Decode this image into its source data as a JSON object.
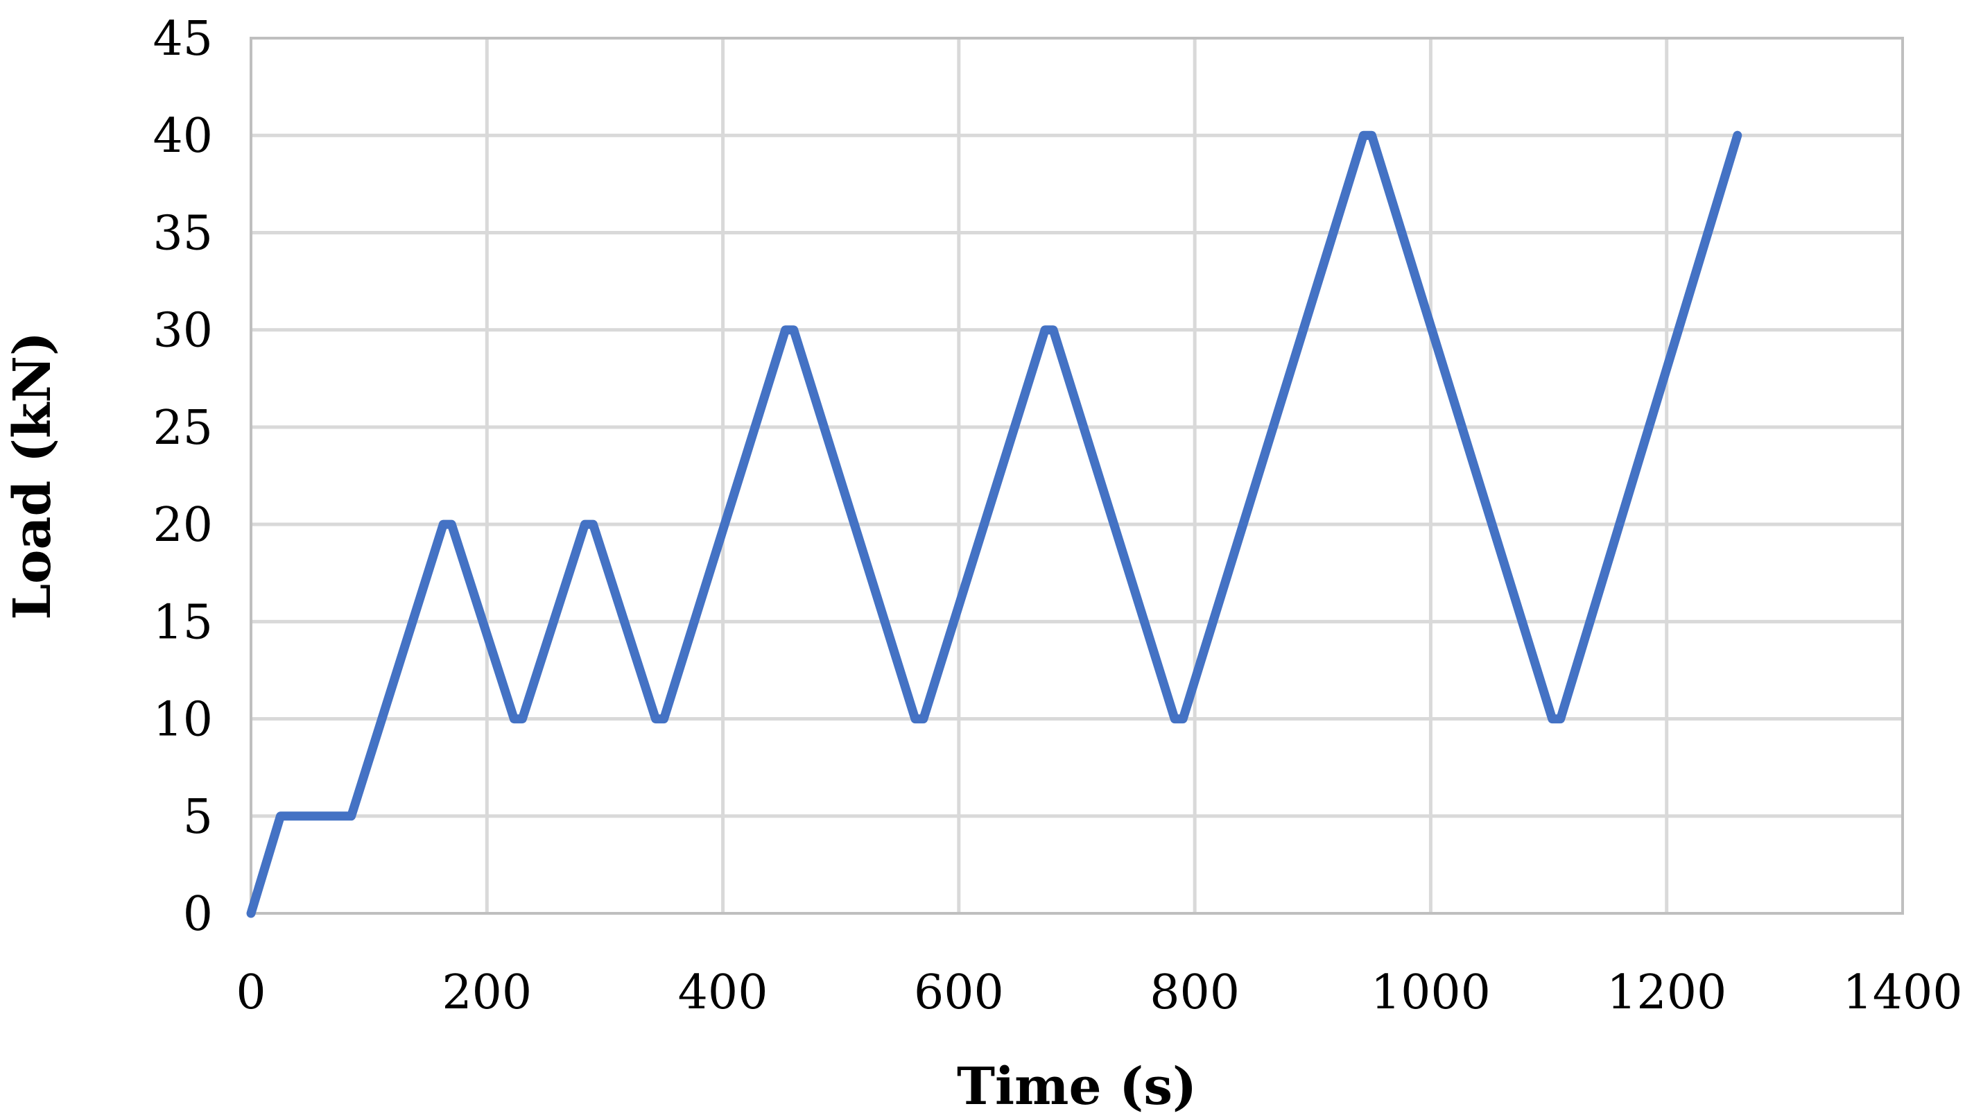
{
  "chart_data": {
    "type": "line",
    "title": "",
    "xlabel": "Time (s)",
    "ylabel": "Load (kN)",
    "xlim": [
      0,
      1400
    ],
    "ylim": [
      0,
      45
    ],
    "xticks": [
      0,
      200,
      400,
      600,
      800,
      1000,
      1200,
      1400
    ],
    "yticks": [
      0,
      5,
      10,
      15,
      20,
      25,
      30,
      35,
      40,
      45
    ],
    "grid": true,
    "colors": {
      "line": "#4472C4",
      "grid": "#D9D9D9",
      "frame": "#BFBFBF"
    },
    "series": [
      {
        "x": [
          0,
          25,
          85,
          163,
          170,
          223,
          230,
          283,
          290,
          343,
          350,
          453,
          460,
          563,
          570,
          673,
          680,
          783,
          790,
          943,
          950,
          1103,
          1110,
          1260
        ],
        "y": [
          0,
          5,
          5,
          20,
          20,
          10,
          10,
          20,
          20,
          10,
          10,
          30,
          30,
          10,
          10,
          30,
          30,
          10,
          10,
          40,
          40,
          10,
          10,
          40
        ]
      }
    ]
  }
}
